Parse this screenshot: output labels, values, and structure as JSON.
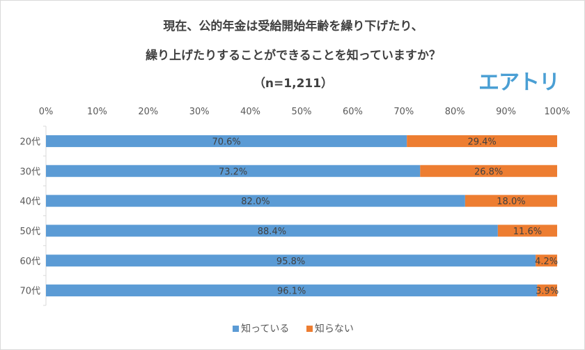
{
  "chart_data": {
    "type": "bar",
    "stacked": "percent",
    "orientation": "horizontal",
    "title_lines": [
      "現在、公的年金は受給開始年齢を繰り下げたり、",
      "繰り上げたりすることができることを知っていますか？",
      "（n=1,211）"
    ],
    "categories": [
      "20代",
      "30代",
      "40代",
      "50代",
      "60代",
      "70代"
    ],
    "series": [
      {
        "name": "知っている",
        "color": "#5b9bd5",
        "values": [
          70.6,
          73.2,
          82.0,
          88.4,
          95.8,
          96.1
        ],
        "labels": [
          "70.6%",
          "73.2%",
          "82.0%",
          "88.4%",
          "95.8%",
          "96.1%"
        ]
      },
      {
        "name": "知らない",
        "color": "#ed7d31",
        "values": [
          29.4,
          26.8,
          18.0,
          11.6,
          4.2,
          3.9
        ],
        "labels": [
          "29.4%",
          "26.8%",
          "18.0%",
          "11.6%",
          "4.2%",
          "3.9%"
        ]
      }
    ],
    "xlim": [
      0,
      100
    ],
    "x_ticks": [
      "0%",
      "10%",
      "20%",
      "30%",
      "40%",
      "50%",
      "60%",
      "70%",
      "80%",
      "90%",
      "100%"
    ],
    "x_axis_position": "top",
    "grid": false,
    "legend": "bottom"
  },
  "logo": "エアトリ"
}
